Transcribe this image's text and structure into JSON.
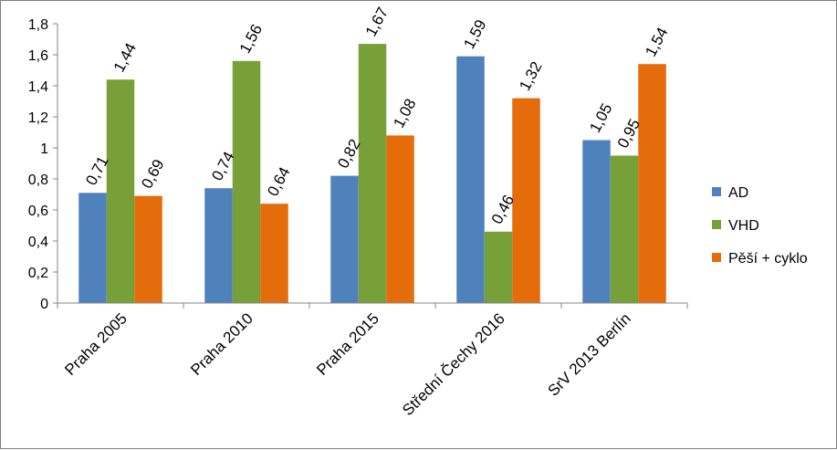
{
  "chart_data": {
    "type": "bar",
    "categories": [
      "Praha 2005",
      "Praha 2010",
      "Praha 2015",
      "Střední Čechy 2016",
      "SrV 2013 Berlín"
    ],
    "series": [
      {
        "name": "AD",
        "color": "#4f81bd",
        "values": [
          0.71,
          0.74,
          0.82,
          1.59,
          1.05
        ],
        "labels": [
          "0,71",
          "0,74",
          "0,82",
          "1,59",
          "1,05"
        ]
      },
      {
        "name": "VHD",
        "color": "#77a038",
        "values": [
          1.44,
          1.56,
          1.67,
          0.46,
          0.95
        ],
        "labels": [
          "1,44",
          "1,56",
          "1,67",
          "0,46",
          "0,95"
        ]
      },
      {
        "name": "Pěší + cyklo",
        "color": "#e46c0a",
        "values": [
          0.69,
          0.64,
          1.08,
          1.32,
          1.54
        ],
        "labels": [
          "0,69",
          "0,64",
          "1,08",
          "1,32",
          "1,54"
        ]
      }
    ],
    "yticks": [
      "0",
      "0,2",
      "0,4",
      "0,6",
      "0,8",
      "1",
      "1,2",
      "1,4",
      "1,6",
      "1,8"
    ],
    "ylim": [
      0,
      1.8
    ],
    "grid": false,
    "legend_position": "right"
  }
}
